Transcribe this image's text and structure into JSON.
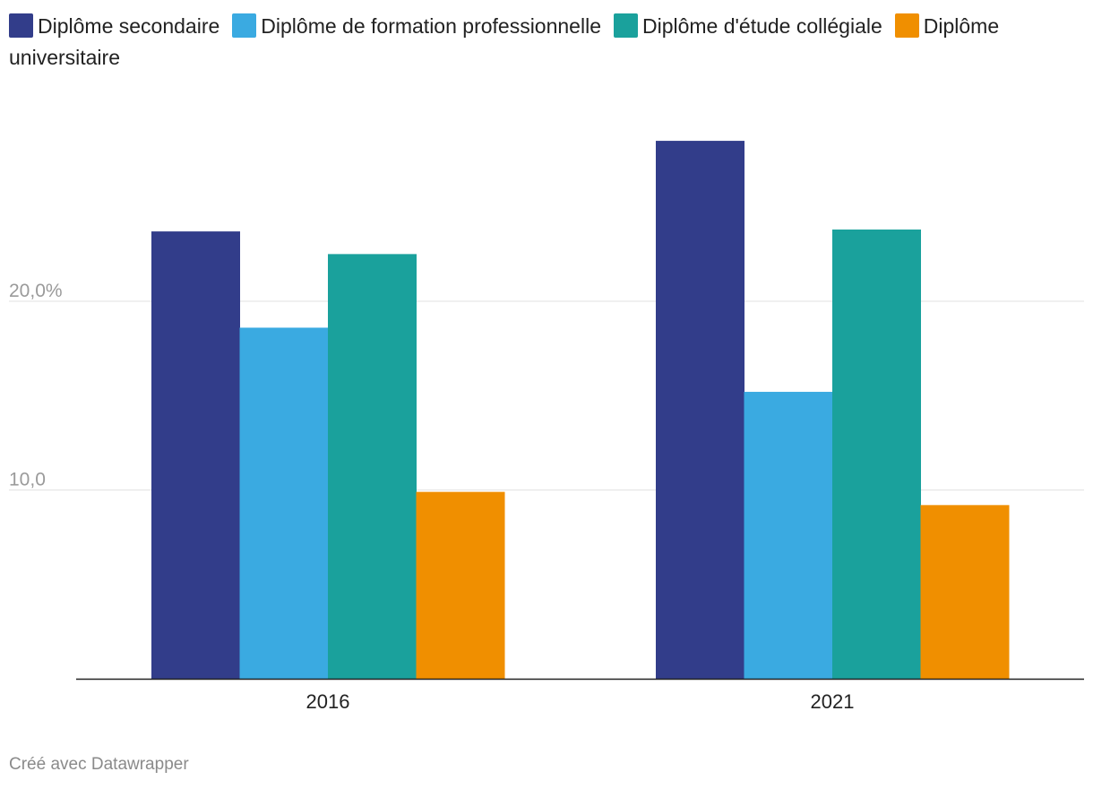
{
  "chart_data": {
    "type": "bar",
    "title": "",
    "xlabel": "",
    "ylabel": "",
    "categories": [
      "2016",
      "2021"
    ],
    "series": [
      {
        "name": "Diplôme secondaire",
        "color": "#323d8a",
        "values": [
          23.7,
          28.5
        ]
      },
      {
        "name": "Diplôme de formation professionnelle",
        "color": "#3aaae1",
        "values": [
          18.6,
          15.2
        ]
      },
      {
        "name": "Diplôme d'étude collégiale",
        "color": "#1aa19c",
        "values": [
          22.5,
          23.8
        ]
      },
      {
        "name": "Diplôme universitaire",
        "color": "#f08f00",
        "values": [
          9.9,
          9.2
        ]
      }
    ],
    "yticks": [
      {
        "value": 10,
        "label": "10,0"
      },
      {
        "value": 20,
        "label": "20,0%"
      }
    ],
    "ylim": [
      0,
      30
    ],
    "grid": true,
    "legend": "top"
  },
  "footer": {
    "credit": "Créé avec Datawrapper"
  }
}
